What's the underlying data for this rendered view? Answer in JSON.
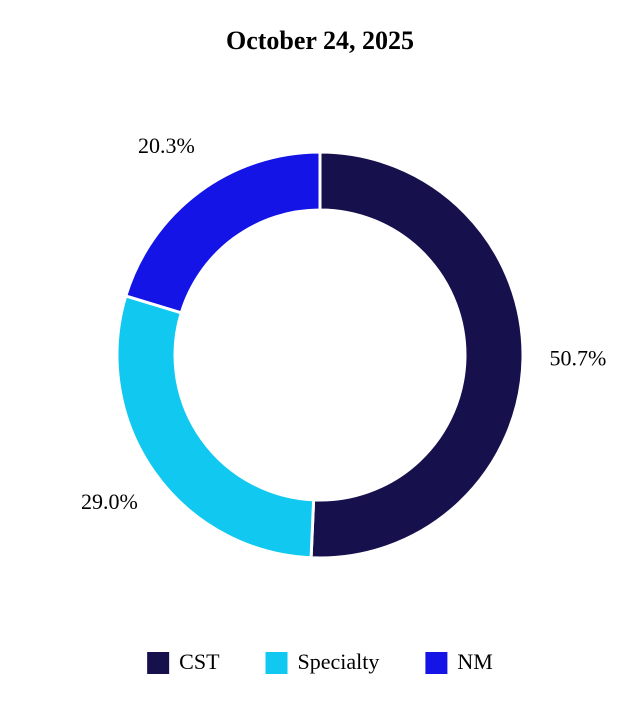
{
  "chart_data": {
    "type": "donut",
    "title": "October 24, 2025",
    "labels": [
      "CST",
      "Specialty",
      "NM"
    ],
    "values": [
      50.7,
      29.0,
      20.3
    ],
    "value_labels": [
      "50.7%",
      "29.0%",
      "20.3%"
    ],
    "colors": [
      "#16104d",
      "#10c8f0",
      "#1414e6"
    ],
    "legend": "bottom"
  }
}
